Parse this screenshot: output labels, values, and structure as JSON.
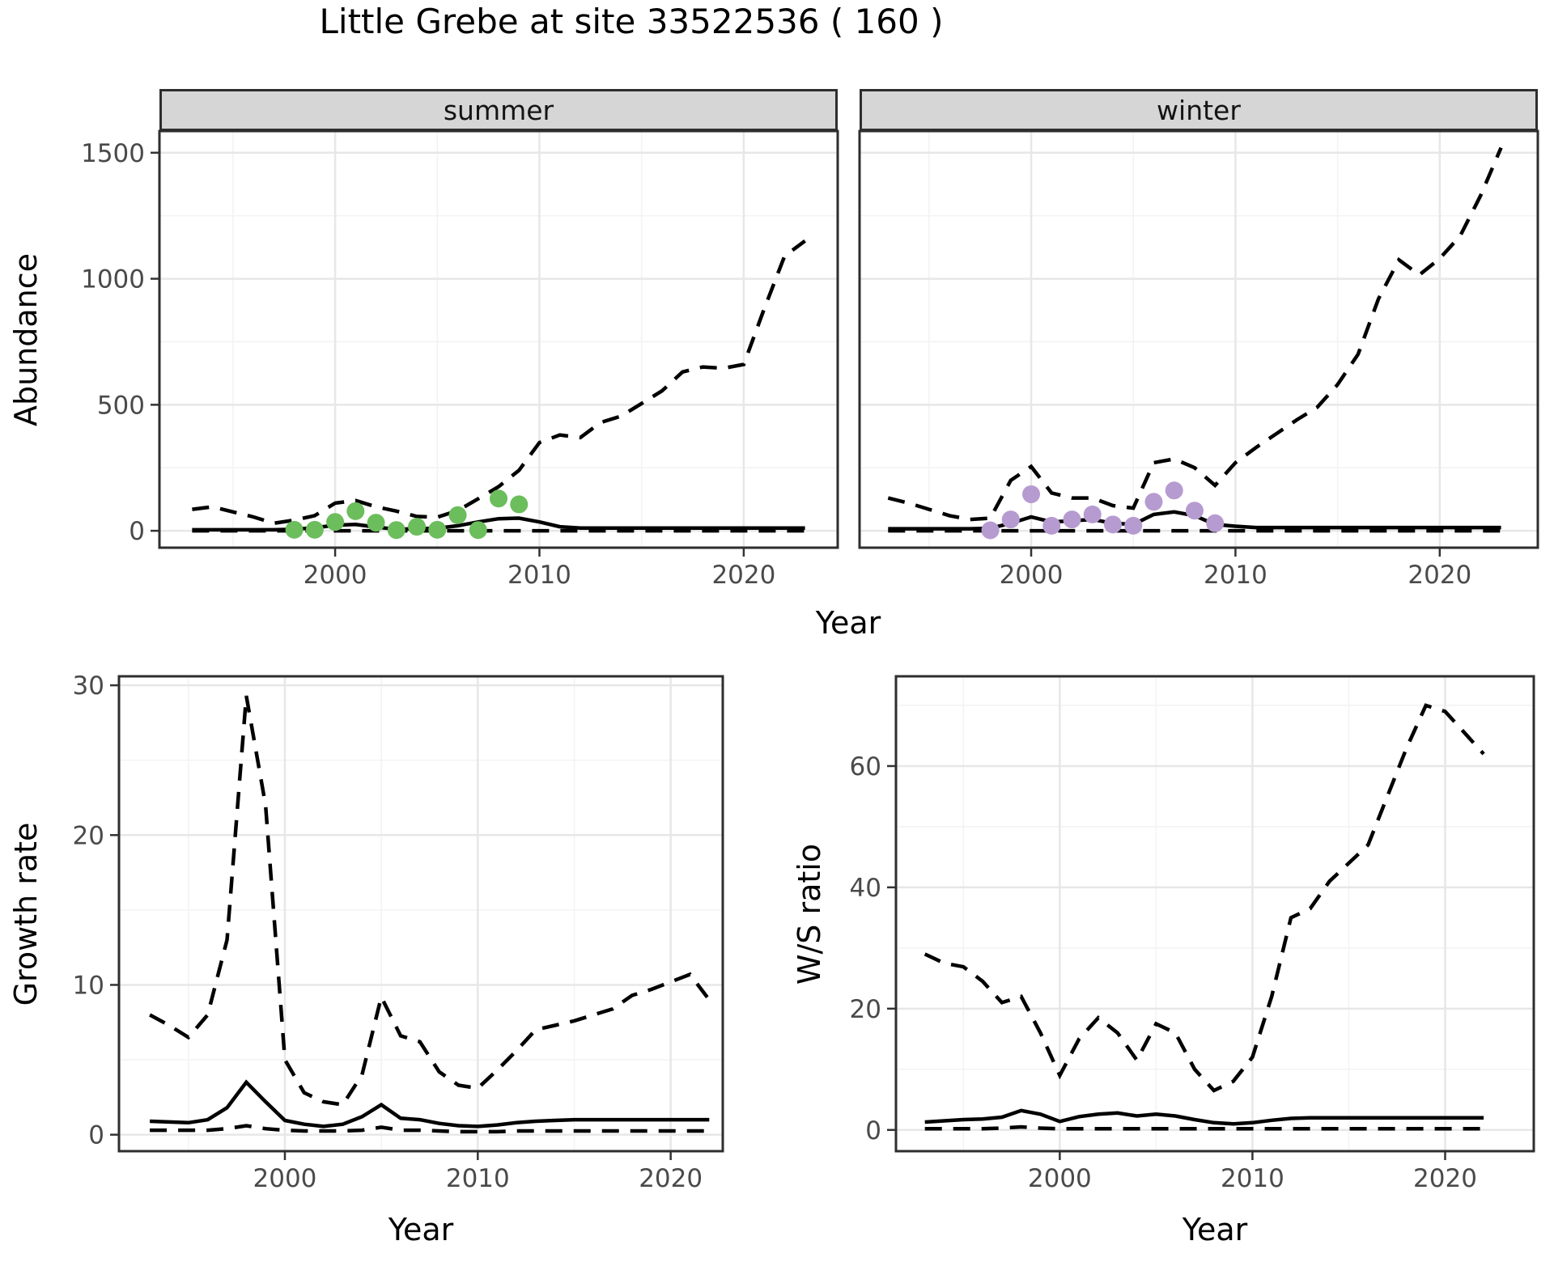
{
  "title": "Little Grebe at site 33522536 ( 160 )",
  "colors": {
    "summer_points": "#6cbd5c",
    "winter_points": "#b69bd0",
    "line": "#000000",
    "strip_bg": "#d6d6d6",
    "grid_major": "#e7e7e7",
    "grid_minor": "#f3f3f3",
    "axis_text": "#4a4a4a",
    "panel_border": "#2e2e2e"
  },
  "top_row": {
    "ylabel": "Abundance",
    "xlabel": "Year",
    "facets": [
      {
        "label": "summer"
      },
      {
        "label": "winter"
      }
    ]
  },
  "bottom_left": {
    "ylabel": "Growth rate",
    "xlabel": "Year"
  },
  "bottom_right": {
    "ylabel": "W/S ratio",
    "xlabel": "Year"
  },
  "chart_data": [
    {
      "type": "line",
      "facet": "summer",
      "title": "summer",
      "xlabel": "Year",
      "ylabel": "Abundance",
      "xlim": [
        1991.4,
        2024.6
      ],
      "ylim": [
        -67,
        1586
      ],
      "xticks": [
        2000,
        2010,
        2020
      ],
      "yticks": [
        0,
        500,
        1000,
        1500
      ],
      "xminor": [
        1995,
        2005,
        2015
      ],
      "yminor": [
        250,
        750,
        1250
      ],
      "grid": true,
      "legend": "none",
      "years": [
        1993,
        1994,
        1995,
        1996,
        1997,
        1998,
        1999,
        2000,
        2001,
        2002,
        2003,
        2004,
        2005,
        2006,
        2007,
        2008,
        2009,
        2010,
        2011,
        2012,
        2013,
        2014,
        2015,
        2016,
        2017,
        2018,
        2019,
        2020,
        2021,
        2022,
        2023
      ],
      "series": [
        {
          "name": "upper_ci",
          "style": "dashed",
          "values": [
            85,
            95,
            75,
            55,
            30,
            42,
            60,
            110,
            120,
            95,
            78,
            57,
            54,
            80,
            127,
            175,
            240,
            350,
            380,
            370,
            430,
            455,
            505,
            555,
            630,
            650,
            645,
            660,
            880,
            1090,
            1150
          ]
        },
        {
          "name": "median_fit",
          "style": "solid",
          "values": [
            4,
            4,
            4,
            4,
            4,
            6,
            12,
            22,
            25,
            15,
            6,
            8,
            10,
            20,
            35,
            48,
            50,
            35,
            16,
            11,
            11,
            11,
            11,
            11,
            11,
            11,
            11,
            11,
            11,
            11,
            11
          ]
        },
        {
          "name": "lower_ci",
          "style": "dashed",
          "values": [
            0,
            0,
            0,
            0,
            0,
            0,
            0,
            0,
            0,
            0,
            0,
            0,
            0,
            0,
            0,
            0,
            0,
            0,
            0,
            0,
            0,
            0,
            0,
            0,
            0,
            0,
            0,
            0,
            0,
            0,
            0
          ]
        }
      ],
      "points": {
        "name": "observed_summer_counts",
        "color": "#6cbd5c",
        "years": [
          1998,
          1999,
          2000,
          2001,
          2002,
          2003,
          2004,
          2005,
          2006,
          2007,
          2008,
          2009
        ],
        "values": [
          4,
          4,
          35,
          78,
          32,
          3,
          16,
          4,
          62,
          3,
          128,
          105
        ]
      }
    },
    {
      "type": "line",
      "facet": "winter",
      "title": "winter",
      "xlabel": "Year",
      "ylabel": "Abundance",
      "xlim": [
        1991.6,
        2024.8
      ],
      "ylim": [
        -67,
        1586
      ],
      "xticks": [
        2000,
        2010,
        2020
      ],
      "yticks": [
        0,
        500,
        1000,
        1500
      ],
      "xminor": [
        1995,
        2005,
        2015
      ],
      "yminor": [
        250,
        750,
        1250
      ],
      "grid": true,
      "legend": "none",
      "years": [
        1993,
        1994,
        1995,
        1996,
        1997,
        1998,
        1999,
        2000,
        2001,
        2002,
        2003,
        2004,
        2005,
        2006,
        2007,
        2008,
        2009,
        2010,
        2011,
        2012,
        2013,
        2014,
        2015,
        2016,
        2017,
        2018,
        2019,
        2020,
        2021,
        2022,
        2023
      ],
      "series": [
        {
          "name": "upper_ci",
          "style": "dashed",
          "values": [
            130,
            110,
            85,
            60,
            45,
            50,
            200,
            255,
            150,
            130,
            130,
            100,
            90,
            270,
            285,
            250,
            180,
            270,
            330,
            385,
            440,
            490,
            580,
            700,
            920,
            1075,
            1015,
            1080,
            1170,
            1330,
            1520
          ]
        },
        {
          "name": "median_fit",
          "style": "solid",
          "values": [
            8,
            8,
            8,
            8,
            8,
            10,
            30,
            55,
            35,
            40,
            45,
            30,
            25,
            65,
            75,
            60,
            25,
            18,
            13,
            13,
            13,
            13,
            13,
            13,
            13,
            13,
            13,
            13,
            13,
            13,
            13
          ]
        },
        {
          "name": "lower_ci",
          "style": "dashed",
          "values": [
            0,
            0,
            0,
            0,
            0,
            0,
            0,
            0,
            0,
            0,
            0,
            0,
            0,
            0,
            0,
            0,
            0,
            0,
            0,
            0,
            0,
            0,
            0,
            0,
            0,
            0,
            0,
            0,
            0,
            0,
            0
          ]
        }
      ],
      "points": {
        "name": "observed_winter_counts",
        "color": "#b69bd0",
        "years": [
          1998,
          1999,
          2000,
          2001,
          2002,
          2003,
          2004,
          2005,
          2006,
          2007,
          2008,
          2009
        ],
        "values": [
          2,
          45,
          145,
          20,
          45,
          65,
          25,
          20,
          115,
          160,
          80,
          30
        ]
      }
    },
    {
      "type": "line",
      "facet": "growth_rate",
      "title": "Growth rate",
      "xlabel": "Year",
      "ylabel": "Growth rate",
      "xlim": [
        1991.4,
        2022.7
      ],
      "ylim": [
        -1.1,
        30.6
      ],
      "xticks": [
        2000,
        2010,
        2020
      ],
      "yticks": [
        0,
        10,
        20,
        30
      ],
      "xminor": [
        1995,
        2005,
        2015
      ],
      "yminor": [
        5,
        15,
        25
      ],
      "grid": true,
      "legend": "none",
      "years": [
        1993,
        1994,
        1995,
        1996,
        1997,
        1998,
        1999,
        2000,
        2001,
        2002,
        2003,
        2004,
        2005,
        2006,
        2007,
        2008,
        2009,
        2010,
        2011,
        2012,
        2013,
        2014,
        2015,
        2016,
        2017,
        2018,
        2019,
        2020,
        2021,
        2022
      ],
      "series": [
        {
          "name": "upper_ci",
          "style": "dashed",
          "values": [
            8,
            7.3,
            6.5,
            8,
            13,
            29.3,
            22,
            5,
            2.8,
            2.2,
            2,
            4,
            9.2,
            6.6,
            6.2,
            4.2,
            3.3,
            3.1,
            4.3,
            5.6,
            7,
            7.3,
            7.6,
            8,
            8.4,
            9.3,
            9.7,
            10.2,
            10.7,
            9
          ]
        },
        {
          "name": "median_fit",
          "style": "solid",
          "values": [
            0.9,
            0.85,
            0.8,
            1,
            1.8,
            3.5,
            2.2,
            0.95,
            0.7,
            0.55,
            0.7,
            1.2,
            2,
            1.1,
            1,
            0.75,
            0.6,
            0.55,
            0.65,
            0.8,
            0.9,
            0.95,
            1,
            1,
            1,
            1,
            1,
            1,
            1,
            1
          ]
        },
        {
          "name": "lower_ci",
          "style": "dashed",
          "values": [
            0.3,
            0.3,
            0.3,
            0.3,
            0.4,
            0.6,
            0.4,
            0.3,
            0.25,
            0.25,
            0.25,
            0.3,
            0.5,
            0.3,
            0.3,
            0.25,
            0.2,
            0.2,
            0.2,
            0.25,
            0.25,
            0.25,
            0.25,
            0.25,
            0.25,
            0.25,
            0.25,
            0.25,
            0.25,
            0.25
          ]
        }
      ]
    },
    {
      "type": "line",
      "facet": "ws_ratio",
      "title": "W/S ratio",
      "xlabel": "Year",
      "ylabel": "W/S ratio",
      "xlim": [
        1991.5,
        2024.6
      ],
      "ylim": [
        -3.5,
        74.8
      ],
      "xticks": [
        2000,
        2010,
        2020
      ],
      "yticks": [
        0,
        20,
        40,
        60
      ],
      "xminor": [
        1995,
        2005,
        2015
      ],
      "yminor": [
        10,
        30,
        50,
        70
      ],
      "grid": true,
      "legend": "none",
      "years": [
        1993,
        1994,
        1995,
        1996,
        1997,
        1998,
        1999,
        2000,
        2001,
        2002,
        2003,
        2004,
        2005,
        2006,
        2007,
        2008,
        2009,
        2010,
        2011,
        2012,
        2013,
        2014,
        2015,
        2016,
        2017,
        2018,
        2019,
        2020,
        2021,
        2022
      ],
      "series": [
        {
          "name": "upper_ci",
          "style": "dashed",
          "values": [
            29,
            27.5,
            26.9,
            24.5,
            21,
            22,
            16,
            9,
            15,
            18.5,
            16,
            11.5,
            17.5,
            16,
            10,
            6.5,
            8,
            12,
            22,
            35,
            36.5,
            41,
            44,
            47,
            55,
            63,
            70,
            69,
            65.5,
            62
          ]
        },
        {
          "name": "median_fit",
          "style": "solid",
          "values": [
            1.3,
            1.5,
            1.7,
            1.8,
            2.1,
            3.2,
            2.6,
            1.4,
            2.2,
            2.6,
            2.8,
            2.3,
            2.6,
            2.3,
            1.7,
            1.2,
            1,
            1.2,
            1.6,
            1.9,
            2,
            2,
            2,
            2,
            2,
            2,
            2,
            2,
            2,
            2
          ]
        },
        {
          "name": "lower_ci",
          "style": "dashed",
          "values": [
            0.2,
            0.2,
            0.2,
            0.2,
            0.3,
            0.5,
            0.3,
            0.2,
            0.2,
            0.2,
            0.2,
            0.2,
            0.2,
            0.2,
            0.2,
            0.2,
            0.2,
            0.2,
            0.2,
            0.2,
            0.2,
            0.2,
            0.2,
            0.2,
            0.2,
            0.2,
            0.2,
            0.2,
            0.2,
            0.2
          ]
        }
      ]
    }
  ]
}
